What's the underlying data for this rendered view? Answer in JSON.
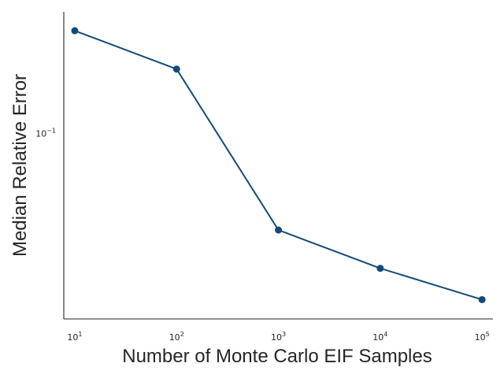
{
  "chart_data": {
    "type": "line",
    "title": "",
    "xlabel": "Number of Monte Carlo EIF Samples",
    "ylabel": "Median Relative Error",
    "xscale": "log",
    "yscale": "log",
    "xlim": [
      7.8,
      128000
    ],
    "ylim": [
      0.0142,
      0.36
    ],
    "x": [
      10,
      100,
      1000,
      10000,
      100000
    ],
    "x_ticks": [
      {
        "value": 10,
        "base": "10",
        "exp": "1"
      },
      {
        "value": 100,
        "base": "10",
        "exp": "2"
      },
      {
        "value": 1000,
        "base": "10",
        "exp": "3"
      },
      {
        "value": 10000,
        "base": "10",
        "exp": "4"
      },
      {
        "value": 100000,
        "base": "10",
        "exp": "5"
      }
    ],
    "y_ticks": [
      {
        "value": 0.1,
        "base": "10",
        "exp": "−1"
      }
    ],
    "grid": false,
    "legend": "none",
    "series": [
      {
        "values": [
          0.295,
          0.197,
          0.0362,
          0.0242,
          0.0174
        ],
        "color": "#144a7a",
        "marker": "circle"
      }
    ]
  }
}
